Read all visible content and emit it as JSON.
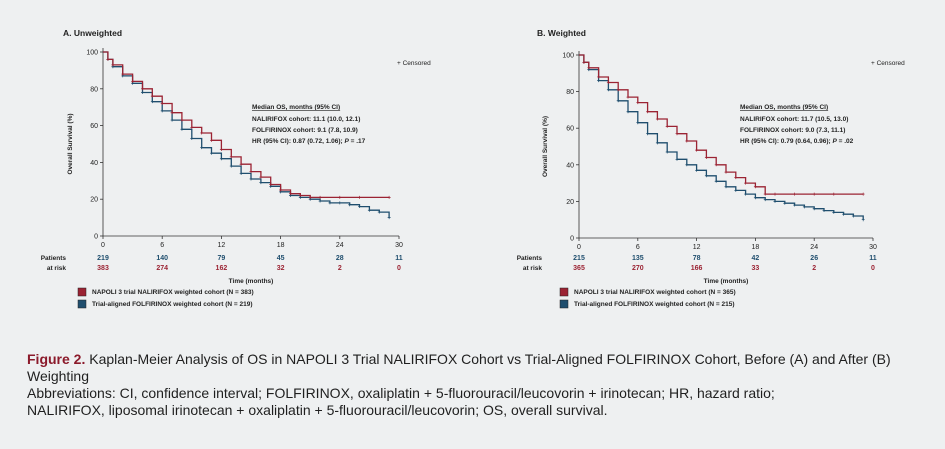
{
  "chart_data": [
    {
      "type": "line",
      "title": "A. Unweighted",
      "xlabel": "Time (months)",
      "ylabel": "Overall Survival (%)",
      "xlim": [
        0,
        30
      ],
      "ylim": [
        0,
        100
      ],
      "x_ticks": [
        0,
        6,
        12,
        18,
        24,
        30
      ],
      "y_ticks": [
        0,
        20,
        40,
        60,
        80,
        100
      ],
      "censor_label": "+ Censored",
      "median_box": {
        "title": "Median OS, months (95% CI)",
        "line1": "NALIRIFOX cohort: 11.1 (10.0, 12.1)",
        "line2": "FOLFIRINOX cohort: 9.1 (7.8, 10.9)",
        "line3_prefix": "HR (95% CI): 0.87 (0.72, 1.06);",
        "line3_p": "P",
        "line3_suffix": "= .17"
      },
      "risk_label_1": "Patients",
      "risk_label_2": "at risk",
      "series": [
        {
          "name": "NAPOLI 3 trial NALIRIFOX weighted cohort (N = 383)",
          "color": "#9b2333",
          "x": [
            0,
            0.5,
            1,
            2,
            3,
            4,
            5,
            6,
            7,
            8,
            9,
            10,
            11,
            12,
            13,
            14,
            15,
            16,
            17,
            18,
            19,
            20,
            21,
            22,
            24,
            26,
            29
          ],
          "y": [
            100,
            96,
            93,
            88,
            84,
            80,
            76,
            72,
            67,
            63,
            59,
            56,
            52,
            47,
            43,
            39,
            35,
            32,
            28,
            25,
            23,
            22,
            21,
            21,
            21,
            21,
            21
          ],
          "at_risk": [
            "383",
            "274",
            "162",
            "32",
            "2",
            "0"
          ]
        },
        {
          "name": "Trial-aligned FOLFIRINOX weighted cohort (N = 219)",
          "color": "#1f4e6e",
          "x": [
            0,
            0.5,
            1,
            2,
            3,
            4,
            5,
            6,
            7,
            8,
            9,
            10,
            11,
            12,
            13,
            14,
            15,
            16,
            17,
            18,
            19,
            20,
            21,
            22,
            23,
            24,
            25,
            26,
            27,
            28,
            29
          ],
          "y": [
            100,
            96,
            92,
            87,
            83,
            78,
            73,
            68,
            63,
            58,
            53,
            48,
            45,
            42,
            38,
            34,
            31,
            29,
            27,
            24,
            22,
            21,
            20,
            19,
            18,
            18,
            17,
            16,
            14,
            13,
            10
          ],
          "at_risk": [
            "219",
            "140",
            "79",
            "45",
            "28",
            "11"
          ]
        }
      ]
    },
    {
      "type": "line",
      "title": "B. Weighted",
      "xlabel": "Time (months)",
      "ylabel": "Overall Survival (%)",
      "xlim": [
        0,
        30
      ],
      "ylim": [
        0,
        100
      ],
      "x_ticks": [
        0,
        6,
        12,
        18,
        24,
        30
      ],
      "y_ticks": [
        0,
        20,
        40,
        60,
        80,
        100
      ],
      "censor_label": "+ Censored",
      "median_box": {
        "title": "Median OS, months (95% CI)",
        "line1": "NALIRIFOX cohort: 11.7 (10.5, 13.0)",
        "line2": "FOLFIRINOX cohort: 9.0 (7.3, 11.1)",
        "line3_prefix": "HR (95% CI): 0.79 (0.64, 0.96);",
        "line3_p": "P",
        "line3_suffix": "= .02"
      },
      "risk_label_1": "Patients",
      "risk_label_2": "at risk",
      "series": [
        {
          "name": "NAPOLI 3 trial NALIRIFOX weighted cohort (N = 365)",
          "color": "#9b2333",
          "x": [
            0,
            0.5,
            1,
            2,
            3,
            4,
            5,
            6,
            7,
            8,
            9,
            10,
            11,
            12,
            13,
            14,
            15,
            16,
            17,
            18,
            19,
            20,
            22,
            24,
            26,
            29
          ],
          "y": [
            100,
            96,
            93,
            88,
            85,
            81,
            77,
            74,
            69,
            65,
            61,
            57,
            53,
            48,
            44,
            40,
            36,
            33,
            30,
            28,
            24,
            24,
            24,
            24,
            24,
            24
          ],
          "at_risk": [
            "365",
            "270",
            "166",
            "33",
            "2",
            "0"
          ]
        },
        {
          "name": "Trial-aligned FOLFIRINOX weighted cohort (N = 215)",
          "color": "#1f4e6e",
          "x": [
            0,
            0.5,
            1,
            2,
            3,
            4,
            5,
            6,
            7,
            8,
            9,
            10,
            11,
            12,
            13,
            14,
            15,
            16,
            17,
            18,
            19,
            20,
            21,
            22,
            23,
            24,
            25,
            26,
            27,
            28,
            29
          ],
          "y": [
            100,
            96,
            92,
            86,
            81,
            75,
            69,
            63,
            57,
            52,
            47,
            43,
            40,
            37,
            34,
            31,
            28,
            26,
            24,
            22,
            21,
            20,
            19,
            18,
            17,
            16,
            15,
            14,
            13,
            12,
            10
          ],
          "at_risk": [
            "215",
            "135",
            "78",
            "42",
            "26",
            "11"
          ]
        }
      ]
    }
  ],
  "caption": {
    "figure_label": "Figure 2.",
    "title_text": " Kaplan-Meier Analysis of OS in NAPOLI 3 Trial NALIRIFOX Cohort vs Trial-Aligned FOLFIRINOX Cohort, Before (A) and After (B) Weighting",
    "abbrev_1": "Abbreviations: CI, confidence interval; FOLFIRINOX, oxaliplatin + 5-fluorouracil/leucovorin + irinotecan; HR, hazard ratio;",
    "abbrev_2": "NALIRIFOX, liposomal irinotecan + oxaliplatin + 5-fluorouracil/leucovorin; OS, overall survival."
  }
}
